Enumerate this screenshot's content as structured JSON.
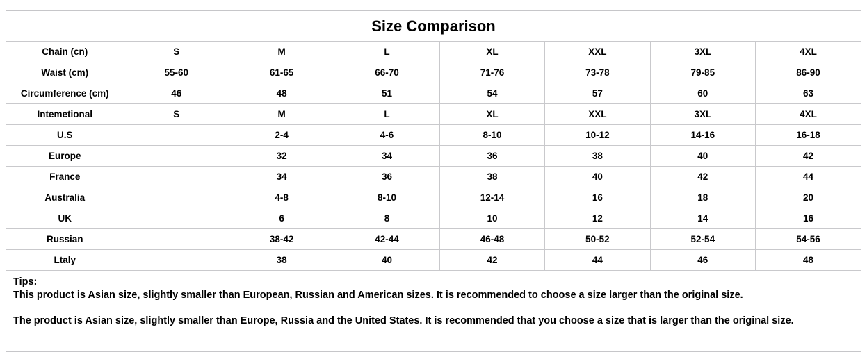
{
  "title": "Size Comparison",
  "table": {
    "rows": [
      {
        "label": "Chain (cn)",
        "values": [
          "S",
          "M",
          "L",
          "XL",
          "XXL",
          "3XL",
          "4XL"
        ]
      },
      {
        "label": "Waist (cm)",
        "values": [
          "55-60",
          "61-65",
          "66-70",
          "71-76",
          "73-78",
          "79-85",
          "86-90"
        ]
      },
      {
        "label": "Circumference (cm)",
        "values": [
          "46",
          "48",
          "51",
          "54",
          "57",
          "60",
          "63"
        ]
      },
      {
        "label": "Intemetional",
        "values": [
          "S",
          "M",
          "L",
          "XL",
          "XXL",
          "3XL",
          "4XL"
        ]
      },
      {
        "label": "U.S",
        "values": [
          "",
          "2-4",
          "4-6",
          "8-10",
          "10-12",
          "14-16",
          "16-18"
        ]
      },
      {
        "label": "Europe",
        "values": [
          "",
          "32",
          "34",
          "36",
          "38",
          "40",
          "42"
        ]
      },
      {
        "label": "France",
        "values": [
          "",
          "34",
          "36",
          "38",
          "40",
          "42",
          "44"
        ]
      },
      {
        "label": "Australia",
        "values": [
          "",
          "4-8",
          "8-10",
          "12-14",
          "16",
          "18",
          "20"
        ]
      },
      {
        "label": "UK",
        "values": [
          "",
          "6",
          "8",
          "10",
          "12",
          "14",
          "16"
        ]
      },
      {
        "label": "Russian",
        "values": [
          "",
          "38-42",
          "42-44",
          "46-48",
          "50-52",
          "52-54",
          "54-56"
        ]
      },
      {
        "label": "Ltaly",
        "values": [
          "",
          "38",
          "40",
          "42",
          "44",
          "46",
          "48"
        ]
      }
    ]
  },
  "tips": {
    "heading": "Tips:",
    "line1": "This product is Asian size, slightly smaller than European, Russian and American sizes. It is recommended to choose a size larger than the original size.",
    "line2": "The product is Asian size, slightly smaller than Europe, Russia and the United States. It is recommended that you choose a size that is larger than the original size."
  },
  "colors": {
    "grid": "#c9c9cc",
    "text": "#000000",
    "background": "#ffffff"
  }
}
